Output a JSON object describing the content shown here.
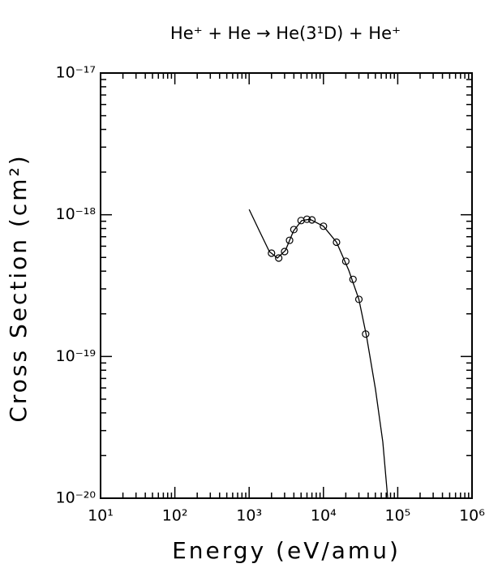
{
  "chart_data": {
    "type": "scatter",
    "title": "He⁺ + He → He(3¹D) + He⁺",
    "x_label": "Energy (eV/amu)",
    "y_label": "Cross Section (cm²)",
    "log_x": true,
    "log_y": true,
    "xlim": [
      10,
      1000000
    ],
    "ylim": [
      1e-20,
      1e-17
    ],
    "xticks": [
      {
        "value": 10,
        "label": "10¹"
      },
      {
        "value": 100,
        "label": "10²"
      },
      {
        "value": 1000,
        "label": "10³"
      },
      {
        "value": 10000,
        "label": "10⁴"
      },
      {
        "value": 100000,
        "label": "10⁵"
      },
      {
        "value": 1000000,
        "label": "10⁶"
      }
    ],
    "yticks": [
      {
        "value": 1e-20,
        "label": "10⁻²⁰"
      },
      {
        "value": 1e-19,
        "label": "10⁻¹⁹"
      },
      {
        "value": 1e-18,
        "label": "10⁻¹⁸"
      },
      {
        "value": 1e-17,
        "label": "10⁻¹⁷"
      }
    ],
    "minor_ticks": true,
    "series": [
      {
        "mode": "line",
        "color": "#000000",
        "x": [
          1000,
          1380,
          1870,
          2400,
          3080,
          3960,
          5100,
          6560,
          10000,
          15000,
          21900,
          30000,
          38100,
          50200,
          63000,
          73300
        ],
        "values": [
          1.09e-18,
          7.65e-19,
          5.5e-19,
          4.95e-19,
          5.6e-19,
          7.7e-19,
          9.1e-19,
          9.3e-19,
          8.3e-19,
          6.4e-19,
          4.06e-19,
          2.53e-19,
          1.38e-19,
          5.86e-20,
          2.49e-20,
          1e-20
        ]
      },
      {
        "mode": "markers",
        "color": "#000000",
        "x": [
          2000,
          2500,
          3000,
          3500,
          4000,
          5000,
          6000,
          7000,
          10000,
          15000,
          20000,
          25000,
          30000,
          37000
        ],
        "values": [
          5.36e-19,
          4.95e-19,
          5.5e-19,
          6.6e-19,
          7.86e-19,
          9.1e-19,
          9.3e-19,
          9.2e-19,
          8.3e-19,
          6.4e-19,
          4.7e-19,
          3.5e-19,
          2.53e-19,
          1.44e-19
        ]
      }
    ]
  }
}
